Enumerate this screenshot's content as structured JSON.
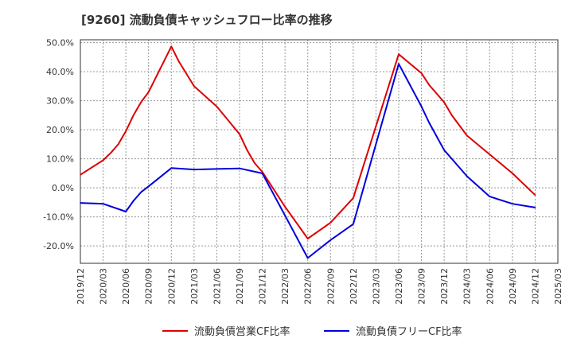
{
  "chart_data": {
    "type": "line",
    "title": "[9260]  流動負債キャッシュフロー比率の推移",
    "xlabel": "",
    "ylabel": "",
    "ylim": [
      -0.26,
      0.51
    ],
    "y_ticks": [
      0.5,
      0.4,
      0.3,
      0.2,
      0.1,
      0.0,
      -0.1,
      -0.2
    ],
    "y_tick_labels": [
      "50.0%",
      "40.0%",
      "30.0%",
      "20.0%",
      "10.0%",
      "0.0%",
      "-10.0%",
      "-20.0%"
    ],
    "x_tick_labels": [
      "2019/12",
      "2020/03",
      "2020/06",
      "2020/09",
      "2020/12",
      "2021/03",
      "2021/06",
      "2021/09",
      "2021/12",
      "2022/03",
      "2022/06",
      "2022/09",
      "2022/12",
      "2023/03",
      "2023/06",
      "2023/09",
      "2023/12",
      "2024/03",
      "2024/06",
      "2024/09",
      "2024/12",
      "2025/03"
    ],
    "grid": true,
    "legend_position": "bottom",
    "series": [
      {
        "name": "流動負債営業CF比率",
        "color": "#dd0000",
        "points": [
          [
            "2019/12",
            0.045
          ],
          [
            "2020/03",
            0.095
          ],
          [
            "2020/04",
            0.12
          ],
          [
            "2020/05",
            0.15
          ],
          [
            "2020/06",
            0.195
          ],
          [
            "2020/07",
            0.25
          ],
          [
            "2020/08",
            0.295
          ],
          [
            "2020/09",
            0.33
          ],
          [
            "2020/12",
            0.487
          ],
          [
            "2021/01",
            0.435
          ],
          [
            "2021/03",
            0.35
          ],
          [
            "2021/06",
            0.28
          ],
          [
            "2021/09",
            0.185
          ],
          [
            "2021/10",
            0.13
          ],
          [
            "2021/11",
            0.085
          ],
          [
            "2021/12",
            0.055
          ],
          [
            "2022/03",
            -0.065
          ],
          [
            "2022/06",
            -0.175
          ],
          [
            "2022/09",
            -0.12
          ],
          [
            "2022/12",
            -0.035
          ],
          [
            "2023/06",
            0.46
          ],
          [
            "2023/09",
            0.395
          ],
          [
            "2023/10",
            0.355
          ],
          [
            "2023/12",
            0.295
          ],
          [
            "2024/01",
            0.25
          ],
          [
            "2024/03",
            0.18
          ],
          [
            "2024/06",
            0.115
          ],
          [
            "2024/09",
            0.05
          ],
          [
            "2024/12",
            -0.025
          ]
        ]
      },
      {
        "name": "流動負債フリーCF比率",
        "color": "#0000dd",
        "points": [
          [
            "2019/12",
            -0.052
          ],
          [
            "2020/03",
            -0.055
          ],
          [
            "2020/06",
            -0.082
          ],
          [
            "2020/07",
            -0.045
          ],
          [
            "2020/08",
            -0.015
          ],
          [
            "2020/09",
            0.005
          ],
          [
            "2020/12",
            0.068
          ],
          [
            "2021/03",
            0.063
          ],
          [
            "2021/06",
            0.065
          ],
          [
            "2021/09",
            0.067
          ],
          [
            "2021/12",
            0.05
          ],
          [
            "2022/03",
            -0.095
          ],
          [
            "2022/06",
            -0.242
          ],
          [
            "2022/09",
            -0.18
          ],
          [
            "2022/12",
            -0.125
          ],
          [
            "2023/06",
            0.427
          ],
          [
            "2023/09",
            0.28
          ],
          [
            "2023/10",
            0.225
          ],
          [
            "2023/12",
            0.13
          ],
          [
            "2024/01",
            0.1
          ],
          [
            "2024/03",
            0.04
          ],
          [
            "2024/06",
            -0.03
          ],
          [
            "2024/09",
            -0.055
          ],
          [
            "2024/12",
            -0.068
          ]
        ]
      }
    ]
  }
}
